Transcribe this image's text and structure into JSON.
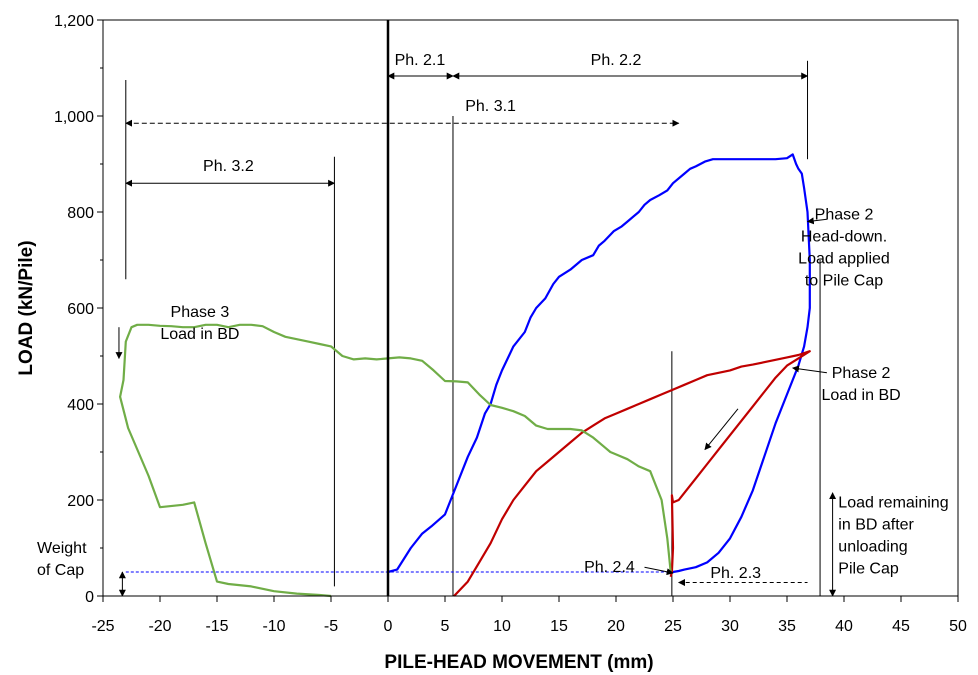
{
  "chart_data": {
    "type": "line",
    "xlabel": "PILE-HEAD MOVEMENT  (mm)",
    "ylabel": "LOAD  (kN/Pile)",
    "xlim": [
      -25,
      50
    ],
    "ylim": [
      0,
      1200
    ],
    "x_ticks": [
      -25,
      -20,
      -15,
      -10,
      -5,
      0,
      5,
      10,
      15,
      20,
      25,
      30,
      35,
      40,
      45,
      50
    ],
    "y_ticks": [
      0,
      200,
      400,
      600,
      800,
      1000,
      1200
    ],
    "y_tick_labels": [
      "0",
      "200",
      "400",
      "600",
      "800",
      "1,000",
      "1,200"
    ],
    "grid": false,
    "series": [
      {
        "color": "#0000ff",
        "x": [
          0,
          0.8,
          1.2,
          2,
          3,
          3.8,
          5,
          5.5,
          6,
          7,
          7.8,
          8.5,
          9,
          9.5,
          10,
          11,
          12,
          12.5,
          13,
          13.8,
          14.5,
          15,
          16,
          17,
          18,
          18.5,
          19,
          19.8,
          20.5,
          21,
          22,
          22.5,
          23,
          23.8,
          24.5,
          25,
          26,
          26.5,
          27,
          27.8,
          28.5,
          29,
          30,
          31,
          32,
          33,
          34,
          35,
          35.5,
          35.8,
          36,
          36.3,
          36.5,
          36.8,
          37,
          37,
          36.8,
          36.5,
          36,
          35,
          34,
          33,
          32,
          31,
          30,
          29,
          28,
          27,
          26,
          25.5,
          25,
          24.9
        ],
        "y": [
          50,
          55,
          70,
          100,
          130,
          145,
          170,
          200,
          230,
          290,
          330,
          380,
          400,
          440,
          470,
          520,
          550,
          580,
          600,
          620,
          650,
          665,
          680,
          700,
          710,
          730,
          740,
          760,
          770,
          780,
          800,
          815,
          825,
          835,
          845,
          860,
          880,
          890,
          895,
          905,
          910,
          910,
          910,
          910,
          910,
          910,
          910,
          912,
          920,
          900,
          890,
          880,
          850,
          800,
          700,
          600,
          560,
          520,
          480,
          420,
          360,
          290,
          220,
          165,
          120,
          90,
          70,
          60,
          55,
          52,
          50,
          48
        ]
      },
      {
        "color": "#c00000",
        "x": [
          5.8,
          7,
          8,
          9,
          10,
          11,
          12,
          13,
          14,
          15,
          16,
          17,
          18,
          19,
          20,
          21,
          22,
          23,
          24,
          25,
          26,
          27,
          28,
          29,
          30,
          31,
          32,
          33,
          34,
          35,
          36,
          37,
          36,
          35,
          34,
          33,
          32,
          31,
          30,
          29,
          28,
          27,
          26,
          25.5,
          25,
          24.9,
          25,
          24.9,
          24.8
        ],
        "y": [
          0,
          30,
          70,
          110,
          160,
          200,
          230,
          260,
          280,
          300,
          320,
          340,
          355,
          370,
          380,
          390,
          400,
          410,
          420,
          430,
          440,
          450,
          460,
          465,
          470,
          478,
          482,
          487,
          492,
          497,
          502,
          510,
          495,
          480,
          455,
          425,
          395,
          365,
          335,
          305,
          275,
          245,
          215,
          200,
          195,
          210,
          100,
          50,
          40
        ]
      },
      {
        "color": "#70ad47",
        "x": [
          24.8,
          24.5,
          24,
          23.5,
          23,
          22,
          21,
          20,
          19.5,
          19,
          18,
          17,
          16,
          15,
          14,
          13,
          12,
          11,
          10,
          9,
          8,
          7,
          6,
          5,
          4,
          3,
          2,
          1,
          0,
          -1,
          -2,
          -3,
          -4,
          -5,
          -6,
          -7,
          -8,
          -9,
          -10,
          -11,
          -12,
          -13,
          -14,
          -15,
          -16,
          -17,
          -18,
          -19,
          -20,
          -21,
          -22,
          -22.5,
          -23,
          -23.2,
          -23.5,
          -22.8,
          -21,
          -20,
          -18,
          -17,
          -16,
          -15,
          -14,
          -12,
          -10,
          -8,
          -6,
          -5
        ],
        "y": [
          50,
          120,
          200,
          230,
          260,
          270,
          285,
          295,
          300,
          310,
          330,
          345,
          348,
          348,
          348,
          355,
          375,
          385,
          392,
          398,
          420,
          445,
          447,
          448,
          470,
          490,
          495,
          497,
          495,
          493,
          495,
          493,
          500,
          520,
          525,
          530,
          535,
          540,
          550,
          562,
          565,
          565,
          560,
          565,
          565,
          560,
          560,
          562,
          563,
          565,
          565,
          560,
          530,
          450,
          415,
          350,
          250,
          185,
          190,
          195,
          110,
          30,
          25,
          20,
          10,
          5,
          2,
          0
        ]
      }
    ],
    "reference_lines": {
      "weight_of_cap": 50,
      "x_lines": [
        0,
        5.7,
        24.9,
        36.8
      ]
    },
    "annotations": {
      "ph21": "Ph. 2.1",
      "ph22": "Ph. 2.2",
      "ph31": "Ph. 3.1",
      "ph32": "Ph. 3.2",
      "ph23": "Ph. 2.3",
      "ph24": "Ph. 2.4",
      "phase2_head_down": [
        "Phase 2",
        "Head-down.",
        "Load applied",
        "to Pile Cap"
      ],
      "phase2_bd": [
        "Phase 2",
        "Load in BD"
      ],
      "phase3_bd": [
        "Phase 3",
        "Load in BD"
      ],
      "weight_of_cap": [
        "Weight",
        "of Cap"
      ],
      "load_remaining": [
        "Load remaining",
        "in BD after",
        "unloading",
        "Pile Cap"
      ]
    }
  }
}
